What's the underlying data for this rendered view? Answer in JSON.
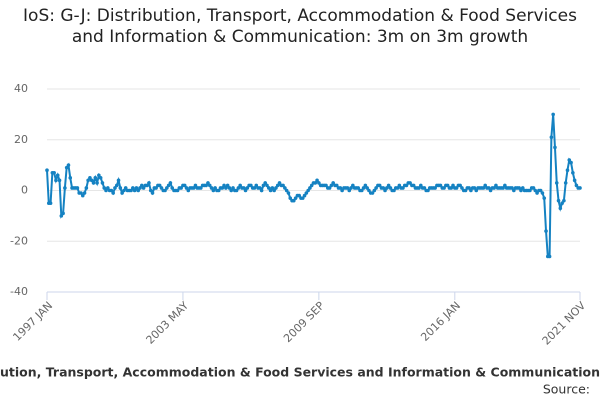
{
  "chart_data": {
    "type": "line",
    "title": "IoS: G-J: Distribution, Transport, Accommodation & Food Services and Information & Communication: 3m on 3m growth",
    "caption": "ution, Transport, Accommodation & Food Services and Information & Communication:",
    "source": "Source:",
    "categories": [
      "1997 JAN",
      null,
      null,
      null,
      null,
      null,
      null,
      null,
      null,
      null,
      null,
      null,
      null,
      null,
      null,
      null,
      null,
      null,
      null,
      null,
      null,
      null,
      null,
      null,
      null,
      null,
      null,
      null,
      null,
      null,
      null,
      null,
      null,
      null,
      null,
      null,
      null,
      null,
      null,
      null,
      null,
      null,
      null,
      null,
      null,
      null,
      null,
      null,
      null,
      null,
      null,
      null,
      null,
      null,
      null,
      null,
      null,
      null,
      null,
      null,
      null,
      null,
      null,
      null,
      null,
      null,
      null,
      null,
      null,
      null,
      null,
      null,
      null,
      null,
      null,
      null,
      "2003 MAY",
      null,
      null,
      null,
      null,
      null,
      null,
      null,
      null,
      null,
      null,
      null,
      null,
      null,
      null,
      null,
      null,
      null,
      null,
      null,
      null,
      null,
      null,
      null,
      null,
      null,
      null,
      null,
      null,
      null,
      null,
      null,
      null,
      null,
      null,
      null,
      null,
      null,
      null,
      null,
      null,
      null,
      null,
      null,
      null,
      null,
      null,
      null,
      null,
      null,
      null,
      null,
      null,
      null,
      null,
      null,
      null,
      null,
      null,
      null,
      null,
      null,
      null,
      null,
      null,
      null,
      null,
      null,
      null,
      null,
      null,
      null,
      null,
      null,
      null,
      null,
      "2009 SEP",
      null,
      null,
      null,
      null,
      null,
      null,
      null,
      null,
      null,
      null,
      null,
      null,
      null,
      null,
      null,
      null,
      null,
      null,
      null,
      null,
      null,
      null,
      null,
      null,
      null,
      null,
      null,
      null,
      null,
      null,
      null,
      null,
      null,
      null,
      null,
      null,
      null,
      null,
      null,
      null,
      null,
      null,
      null,
      null,
      null,
      null,
      null,
      null,
      null,
      null,
      null,
      null,
      null,
      null,
      null,
      null,
      null,
      null,
      null,
      null,
      null,
      null,
      null,
      null,
      null,
      null,
      null,
      null,
      null,
      null,
      null,
      null,
      null,
      null,
      null,
      "2016 JAN",
      null,
      null,
      null,
      null,
      null,
      null,
      null,
      null,
      null,
      null,
      null,
      null,
      null,
      null,
      null,
      null,
      null,
      null,
      null,
      null,
      null,
      null,
      null,
      null,
      null,
      null,
      null,
      null,
      null,
      null,
      null,
      null,
      null,
      null,
      null,
      null,
      null,
      null,
      null,
      null,
      null,
      null,
      null,
      null,
      null,
      null,
      null,
      null,
      null,
      null,
      null,
      null,
      null,
      null,
      null,
      null,
      null,
      null,
      null,
      null,
      null,
      null,
      null,
      null,
      null,
      null,
      null,
      null,
      null,
      "2021 NOV"
    ],
    "series": [
      {
        "name": "3m on 3m growth",
        "color": "#1582c2",
        "values": [
          8,
          -5,
          -5,
          7,
          7,
          4,
          6,
          4,
          -10,
          -9,
          1,
          9,
          10,
          5,
          1,
          1,
          1,
          1,
          -1,
          -1,
          -2,
          -1,
          1,
          4,
          5,
          4,
          3,
          5,
          3,
          6,
          5,
          3,
          1,
          0,
          1,
          0,
          0,
          -1,
          1,
          2,
          4,
          1,
          -1,
          0,
          1,
          0,
          0,
          0,
          1,
          0,
          1,
          0,
          1,
          2,
          1,
          2,
          2,
          3,
          0,
          -1,
          1,
          1,
          2,
          2,
          1,
          0,
          0,
          1,
          2,
          3,
          1,
          0,
          0,
          0,
          1,
          1,
          2,
          2,
          1,
          0,
          1,
          1,
          1,
          2,
          1,
          1,
          1,
          2,
          2,
          2,
          3,
          2,
          1,
          0,
          1,
          0,
          0,
          1,
          1,
          2,
          1,
          2,
          1,
          0,
          1,
          0,
          0,
          1,
          2,
          1,
          1,
          0,
          1,
          2,
          2,
          1,
          1,
          2,
          1,
          1,
          0,
          2,
          3,
          2,
          1,
          0,
          1,
          0,
          1,
          2,
          3,
          2,
          2,
          1,
          0,
          -1,
          -3,
          -4,
          -4,
          -3,
          -2,
          -2,
          -3,
          -3,
          -2,
          -1,
          0,
          1,
          2,
          3,
          3,
          4,
          3,
          2,
          2,
          2,
          2,
          1,
          1,
          2,
          3,
          2,
          2,
          1,
          1,
          0,
          1,
          1,
          1,
          0,
          1,
          2,
          1,
          1,
          1,
          0,
          0,
          1,
          2,
          1,
          0,
          -1,
          -1,
          0,
          1,
          2,
          2,
          1,
          1,
          0,
          1,
          2,
          1,
          0,
          0,
          1,
          1,
          2,
          1,
          1,
          2,
          2,
          3,
          3,
          2,
          2,
          1,
          1,
          1,
          2,
          1,
          1,
          0,
          0,
          1,
          1,
          1,
          1,
          2,
          2,
          2,
          1,
          1,
          2,
          2,
          1,
          1,
          2,
          1,
          1,
          2,
          2,
          1,
          0,
          0,
          1,
          1,
          0,
          1,
          1,
          0,
          1,
          1,
          1,
          1,
          2,
          1,
          1,
          0,
          1,
          1,
          2,
          1,
          1,
          1,
          1,
          2,
          1,
          1,
          1,
          1,
          0,
          1,
          1,
          1,
          0,
          1,
          0,
          0,
          0,
          0,
          1,
          1,
          0,
          -1,
          0,
          0,
          -1,
          -3,
          -16,
          -26,
          -26,
          21,
          30,
          17,
          3,
          -4,
          -7,
          -5,
          -4,
          3,
          8,
          12,
          11,
          7,
          4,
          2,
          1,
          1
        ]
      }
    ],
    "ylim": [
      -40,
      40
    ],
    "yticks": [
      -40,
      -20,
      0,
      20,
      40
    ],
    "grid": true
  }
}
